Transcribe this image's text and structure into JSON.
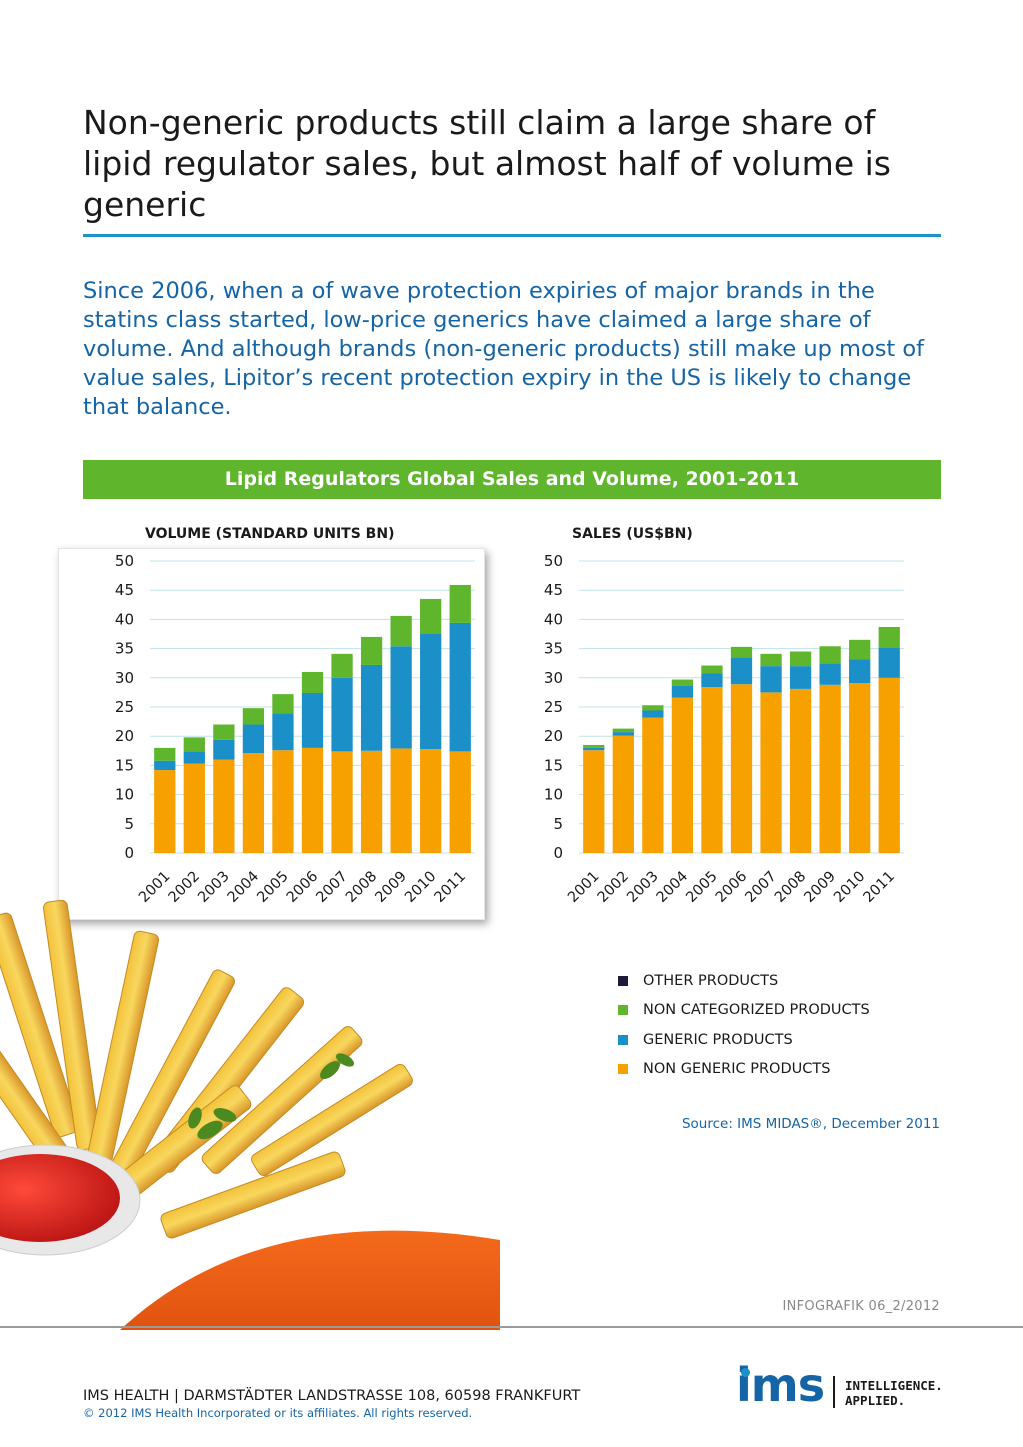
{
  "headline": "Non-generic products still claim a large share of lipid regulator sales, but almost half of volume is generic",
  "intro": "Since 2006, when a of wave protection expiries of major brands in the statins class started, low-price generics have claimed a large share of volume. And although brands (non-generic products) still make up most of value sales, Lipitor’s recent protection expiry in the US is likely to change that balance.",
  "banner": "Lipid Regulators Global Sales and Volume, 2001-2011",
  "colors": {
    "non_generic": "#f7a100",
    "generic": "#1b8fc8",
    "non_categorized": "#5fb52c",
    "other": "#1c1c3a",
    "gridline": "#bfe3ea"
  },
  "chart_data": [
    {
      "type": "bar",
      "stacked": true,
      "title": "VOLUME (STANDARD UNITS BN)",
      "categories": [
        "2001",
        "2002",
        "2003",
        "2004",
        "2005",
        "2006",
        "2007",
        "2008",
        "2009",
        "2010",
        "2011"
      ],
      "ylim": [
        0,
        50
      ],
      "yticks": [
        0,
        5,
        10,
        15,
        20,
        25,
        30,
        35,
        40,
        45,
        50
      ],
      "grid": true,
      "series": [
        {
          "name": "NON GENERIC PRODUCTS",
          "values": [
            14.2,
            15.3,
            16.0,
            17.1,
            17.6,
            18.0,
            17.4,
            17.5,
            17.9,
            17.8,
            17.4
          ]
        },
        {
          "name": "GENERIC PRODUCTS",
          "values": [
            1.6,
            2.1,
            3.4,
            4.9,
            6.3,
            9.4,
            12.6,
            14.7,
            17.5,
            19.7,
            22.0
          ]
        },
        {
          "name": "NON CATEGORIZED PRODUCTS",
          "values": [
            2.2,
            2.4,
            2.6,
            2.8,
            3.3,
            3.6,
            4.1,
            4.8,
            5.2,
            6.0,
            6.5
          ]
        },
        {
          "name": "OTHER PRODUCTS",
          "values": [
            0,
            0,
            0,
            0,
            0,
            0,
            0,
            0,
            0,
            0,
            0
          ]
        }
      ]
    },
    {
      "type": "bar",
      "stacked": true,
      "title": "SALES (US$BN)",
      "categories": [
        "2001",
        "2002",
        "2003",
        "2004",
        "2005",
        "2006",
        "2007",
        "2008",
        "2009",
        "2010",
        "2011"
      ],
      "ylim": [
        0,
        50
      ],
      "yticks": [
        0,
        5,
        10,
        15,
        20,
        25,
        30,
        35,
        40,
        45,
        50
      ],
      "grid": true,
      "series": [
        {
          "name": "NON GENERIC PRODUCTS",
          "values": [
            17.6,
            20.1,
            23.2,
            26.6,
            28.4,
            28.9,
            27.5,
            28.1,
            28.8,
            29.1,
            30.0
          ]
        },
        {
          "name": "GENERIC PRODUCTS",
          "values": [
            0.4,
            0.6,
            1.2,
            2.0,
            2.4,
            4.6,
            4.5,
            3.9,
            3.7,
            4.1,
            5.1
          ]
        },
        {
          "name": "NON CATEGORIZED PRODUCTS",
          "values": [
            0.5,
            0.6,
            0.9,
            1.1,
            1.3,
            1.8,
            2.1,
            2.5,
            2.9,
            3.3,
            3.6
          ]
        },
        {
          "name": "OTHER PRODUCTS",
          "values": [
            0,
            0,
            0,
            0,
            0,
            0,
            0,
            0,
            0,
            0,
            0
          ]
        }
      ]
    }
  ],
  "legend": [
    {
      "label": "OTHER PRODUCTS",
      "color": "#1c1c3a"
    },
    {
      "label": "NON CATEGORIZED PRODUCTS",
      "color": "#5fb52c"
    },
    {
      "label": "GENERIC PRODUCTS",
      "color": "#1b8fc8"
    },
    {
      "label": "NON GENERIC PRODUCTS",
      "color": "#f7a100"
    }
  ],
  "source": "Source: IMS MIDAS®, December 2011",
  "infografik": "INFOGRAFIK 06_2/2012",
  "footer": {
    "address": "IMS HEALTH | DARMSTÄDTER LANDSTRASSE 108, 60598 FRANKFURT",
    "copyright": "© 2012 IMS Health Incorporated or its affiliates. All rights reserved."
  },
  "logo": {
    "wordmark": "ims",
    "tagline_1": "INTELLIGENCE.",
    "tagline_2": "APPLIED."
  }
}
